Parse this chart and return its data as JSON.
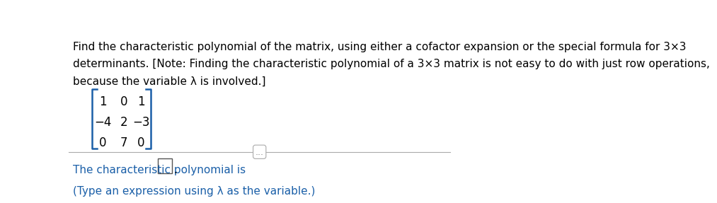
{
  "bg_color": "#ffffff",
  "top_bar_color": "#1a6fa8",
  "body_text_color": "#000000",
  "blue_text_color": "#1a5fa8",
  "paragraph1_line1": "Find the characteristic polynomial of the matrix, using either a cofactor expansion or the special formula for 3×3",
  "paragraph1_line2": "determinants. [Note: Finding the characteristic polynomial of a 3×3 matrix is not easy to do with just row operations,",
  "paragraph1_line3": "because the variable λ is involved.]",
  "matrix_rows": [
    [
      "1",
      "0",
      "1"
    ],
    [
      "−4",
      "2",
      "−3"
    ],
    [
      "0",
      "7",
      "0"
    ]
  ],
  "divider_color": "#aaaaaa",
  "divider_dots": "...",
  "bottom_line1_prefix": "The characteristic polynomial is ",
  "bottom_line2": "(Type an expression using λ as the variable.)",
  "font_size_body": 11,
  "font_size_matrix": 12,
  "font_size_bottom": 11,
  "bracket_color": "#1a5fa8"
}
